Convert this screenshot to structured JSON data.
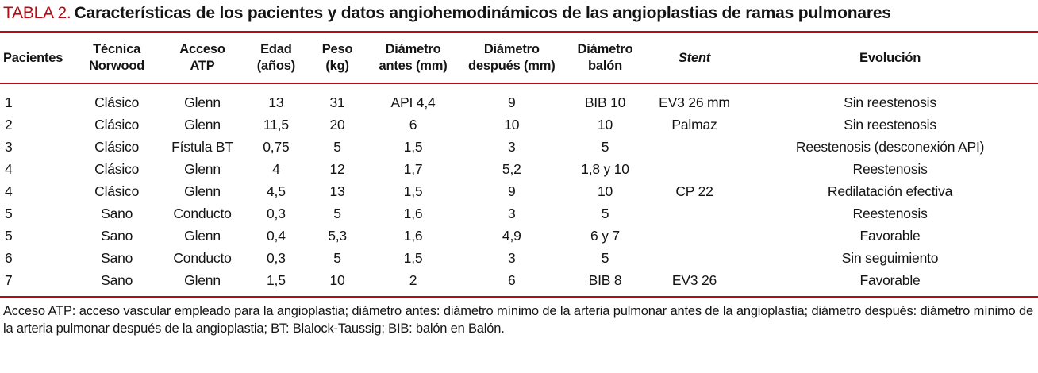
{
  "accent_color": "#b30d13",
  "title": {
    "label": "TABLA 2.",
    "text": "Características de los pacientes y datos angiohemodinámicos de las angioplastias de ramas pulmonares"
  },
  "table": {
    "columns": [
      {
        "id": "pacientes",
        "lines": [
          "Pacientes"
        ]
      },
      {
        "id": "tecnica-norwood",
        "lines": [
          "Técnica",
          "Norwood"
        ]
      },
      {
        "id": "acceso-atp",
        "lines": [
          "Acceso",
          "ATP"
        ]
      },
      {
        "id": "edad",
        "lines": [
          "Edad",
          "(años)"
        ]
      },
      {
        "id": "peso",
        "lines": [
          "Peso",
          "(kg)"
        ]
      },
      {
        "id": "diametro-antes",
        "lines": [
          "Diámetro",
          "antes (mm)"
        ]
      },
      {
        "id": "diametro-despues",
        "lines": [
          "Diámetro",
          "después (mm)"
        ]
      },
      {
        "id": "diametro-balon",
        "lines": [
          "Diámetro",
          "balón"
        ]
      },
      {
        "id": "stent",
        "lines": [
          "Stent"
        ]
      },
      {
        "id": "evolucion",
        "lines": [
          "Evolución"
        ]
      }
    ],
    "rows": [
      [
        "1",
        "Clásico",
        "Glenn",
        "13",
        "31",
        "API 4,4",
        "9",
        "BIB 10",
        "EV3 26 mm",
        "Sin reestenosis"
      ],
      [
        "2",
        "Clásico",
        "Glenn",
        "11,5",
        "20",
        "6",
        "10",
        "10",
        "Palmaz",
        "Sin reestenosis"
      ],
      [
        "3",
        "Clásico",
        "Fístula BT",
        "0,75",
        "5",
        "1,5",
        "3",
        "5",
        "",
        "Reestenosis (desconexión API)"
      ],
      [
        "4",
        "Clásico",
        "Glenn",
        "4",
        "12",
        "1,7",
        "5,2",
        "1,8 y 10",
        "",
        "Reestenosis"
      ],
      [
        "4",
        "Clásico",
        "Glenn",
        "4,5",
        "13",
        "1,5",
        "9",
        "10",
        "CP 22",
        "Redilatación efectiva"
      ],
      [
        "5",
        "Sano",
        "Conducto",
        "0,3",
        "5",
        "1,6",
        "3",
        "5",
        "",
        "Reestenosis"
      ],
      [
        "5",
        "Sano",
        "Glenn",
        "0,4",
        "5,3",
        "1,6",
        "4,9",
        "6 y 7",
        "",
        "Favorable"
      ],
      [
        "6",
        "Sano",
        "Conducto",
        "0,3",
        "5",
        "1,5",
        "3",
        "5",
        "",
        "Sin seguimiento"
      ],
      [
        "7",
        "Sano",
        "Glenn",
        "1,5",
        "10",
        "2",
        "6",
        "BIB 8",
        "EV3 26",
        "Favorable"
      ]
    ]
  },
  "footnote": "Acceso ATP: acceso vascular empleado para la angioplastia; diámetro antes: diámetro mínimo de la arteria pulmonar antes de la angioplastia; diámetro después: diámetro mínimo de la arteria pulmonar después de la angioplastia; BT: Blalock-Taussig; BIB: balón en Balón."
}
